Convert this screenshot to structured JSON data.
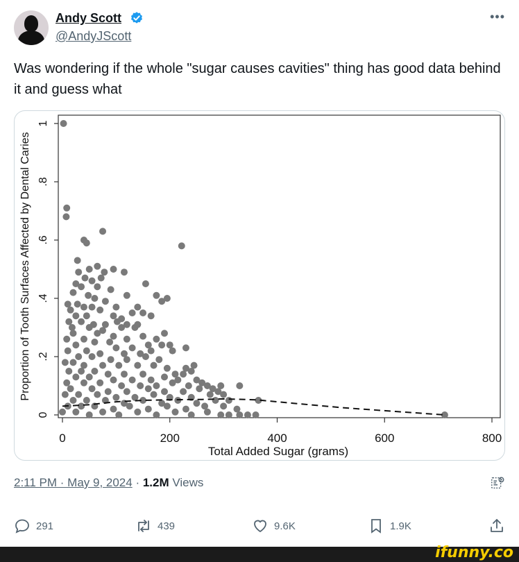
{
  "tweet": {
    "display_name": "Andy Scott",
    "handle": "@AndyJScott",
    "verified": true,
    "more_icon": "more-horizontal-icon",
    "text": "Was wondering if the whole \"sugar causes cavities\" thing has good data behind it and guess what",
    "time": "2:11 PM · May 9, 2024",
    "separator": " · ",
    "views_count": "1.2M",
    "views_label": " Views"
  },
  "actions": {
    "replies": "291",
    "retweets": "439",
    "likes": "9.6K",
    "bookmarks": "1.9K"
  },
  "colors": {
    "verified": "#1d9bf0",
    "points": "#7a7a7a",
    "muted": "#536471",
    "watermark": "#f5cc00"
  },
  "watermark": "ifunny.co",
  "chart_data": {
    "type": "scatter",
    "xlabel": "Total Added Sugar (grams)",
    "ylabel": "Proportion of Tooth Surfaces Affected by Dental Caries",
    "xlim": [
      0,
      800
    ],
    "ylim": [
      0,
      1
    ],
    "x_ticks": [
      "0",
      "200",
      "400",
      "600",
      "800"
    ],
    "y_ticks": [
      "0",
      ".2",
      ".4",
      ".6",
      ".8",
      "1"
    ],
    "grid": false,
    "series": [
      {
        "style": "points",
        "points": [
          [
            2,
            1.0
          ],
          [
            8,
            0.71
          ],
          [
            7,
            0.68
          ],
          [
            75,
            0.63
          ],
          [
            40,
            0.6
          ],
          [
            45,
            0.59
          ],
          [
            222,
            0.58
          ],
          [
            28,
            0.53
          ],
          [
            65,
            0.51
          ],
          [
            50,
            0.5
          ],
          [
            30,
            0.49
          ],
          [
            78,
            0.49
          ],
          [
            95,
            0.5
          ],
          [
            115,
            0.49
          ],
          [
            42,
            0.47
          ],
          [
            55,
            0.46
          ],
          [
            72,
            0.47
          ],
          [
            155,
            0.45
          ],
          [
            25,
            0.45
          ],
          [
            35,
            0.44
          ],
          [
            65,
            0.44
          ],
          [
            90,
            0.43
          ],
          [
            20,
            0.42
          ],
          [
            48,
            0.41
          ],
          [
            120,
            0.41
          ],
          [
            175,
            0.41
          ],
          [
            185,
            0.39
          ],
          [
            195,
            0.4
          ],
          [
            60,
            0.4
          ],
          [
            80,
            0.39
          ],
          [
            10,
            0.38
          ],
          [
            28,
            0.38
          ],
          [
            40,
            0.37
          ],
          [
            55,
            0.37
          ],
          [
            100,
            0.37
          ],
          [
            140,
            0.37
          ],
          [
            15,
            0.36
          ],
          [
            70,
            0.36
          ],
          [
            130,
            0.35
          ],
          [
            150,
            0.35
          ],
          [
            25,
            0.34
          ],
          [
            45,
            0.34
          ],
          [
            95,
            0.34
          ],
          [
            110,
            0.33
          ],
          [
            165,
            0.34
          ],
          [
            12,
            0.32
          ],
          [
            35,
            0.32
          ],
          [
            58,
            0.31
          ],
          [
            80,
            0.31
          ],
          [
            120,
            0.31
          ],
          [
            140,
            0.31
          ],
          [
            102,
            0.32
          ],
          [
            18,
            0.3
          ],
          [
            50,
            0.3
          ],
          [
            75,
            0.29
          ],
          [
            110,
            0.3
          ],
          [
            135,
            0.3
          ],
          [
            190,
            0.28
          ],
          [
            20,
            0.28
          ],
          [
            65,
            0.28
          ],
          [
            95,
            0.27
          ],
          [
            150,
            0.27
          ],
          [
            175,
            0.26
          ],
          [
            8,
            0.26
          ],
          [
            40,
            0.26
          ],
          [
            120,
            0.26
          ],
          [
            60,
            0.25
          ],
          [
            88,
            0.25
          ],
          [
            160,
            0.24
          ],
          [
            185,
            0.24
          ],
          [
            200,
            0.24
          ],
          [
            25,
            0.24
          ],
          [
            100,
            0.23
          ],
          [
            130,
            0.23
          ],
          [
            230,
            0.23
          ],
          [
            10,
            0.22
          ],
          [
            45,
            0.22
          ],
          [
            70,
            0.21
          ],
          [
            115,
            0.21
          ],
          [
            145,
            0.21
          ],
          [
            165,
            0.22
          ],
          [
            205,
            0.22
          ],
          [
            30,
            0.2
          ],
          [
            55,
            0.2
          ],
          [
            90,
            0.19
          ],
          [
            120,
            0.19
          ],
          [
            180,
            0.19
          ],
          [
            155,
            0.2
          ],
          [
            5,
            0.18
          ],
          [
            20,
            0.18
          ],
          [
            40,
            0.17
          ],
          [
            75,
            0.17
          ],
          [
            105,
            0.17
          ],
          [
            140,
            0.17
          ],
          [
            170,
            0.17
          ],
          [
            195,
            0.16
          ],
          [
            230,
            0.16
          ],
          [
            245,
            0.17
          ],
          [
            12,
            0.15
          ],
          [
            35,
            0.15
          ],
          [
            60,
            0.15
          ],
          [
            85,
            0.14
          ],
          [
            115,
            0.14
          ],
          [
            150,
            0.14
          ],
          [
            210,
            0.14
          ],
          [
            240,
            0.15
          ],
          [
            225,
            0.14
          ],
          [
            25,
            0.13
          ],
          [
            50,
            0.13
          ],
          [
            95,
            0.12
          ],
          [
            130,
            0.12
          ],
          [
            165,
            0.12
          ],
          [
            190,
            0.13
          ],
          [
            215,
            0.12
          ],
          [
            250,
            0.12
          ],
          [
            8,
            0.11
          ],
          [
            40,
            0.11
          ],
          [
            70,
            0.11
          ],
          [
            110,
            0.1
          ],
          [
            145,
            0.1
          ],
          [
            175,
            0.1
          ],
          [
            205,
            0.11
          ],
          [
            235,
            0.1
          ],
          [
            270,
            0.1
          ],
          [
            295,
            0.1
          ],
          [
            330,
            0.1
          ],
          [
            260,
            0.11
          ],
          [
            15,
            0.09
          ],
          [
            55,
            0.09
          ],
          [
            85,
            0.08
          ],
          [
            120,
            0.08
          ],
          [
            160,
            0.09
          ],
          [
            190,
            0.08
          ],
          [
            225,
            0.08
          ],
          [
            255,
            0.09
          ],
          [
            290,
            0.08
          ],
          [
            280,
            0.09
          ],
          [
            5,
            0.07
          ],
          [
            30,
            0.07
          ],
          [
            65,
            0.07
          ],
          [
            100,
            0.06
          ],
          [
            135,
            0.06
          ],
          [
            170,
            0.07
          ],
          [
            200,
            0.06
          ],
          [
            240,
            0.06
          ],
          [
            275,
            0.07
          ],
          [
            300,
            0.07
          ],
          [
            20,
            0.05
          ],
          [
            45,
            0.05
          ],
          [
            80,
            0.05
          ],
          [
            115,
            0.04
          ],
          [
            150,
            0.05
          ],
          [
            185,
            0.04
          ],
          [
            215,
            0.05
          ],
          [
            250,
            0.04
          ],
          [
            285,
            0.05
          ],
          [
            310,
            0.05
          ],
          [
            365,
            0.05
          ],
          [
            10,
            0.03
          ],
          [
            35,
            0.03
          ],
          [
            60,
            0.03
          ],
          [
            95,
            0.02
          ],
          [
            125,
            0.03
          ],
          [
            160,
            0.02
          ],
          [
            195,
            0.03
          ],
          [
            230,
            0.02
          ],
          [
            265,
            0.03
          ],
          [
            300,
            0.03
          ],
          [
            325,
            0.02
          ],
          [
            0,
            0.01
          ],
          [
            25,
            0.01
          ],
          [
            50,
            0.0
          ],
          [
            75,
            0.01
          ],
          [
            105,
            0.0
          ],
          [
            140,
            0.01
          ],
          [
            175,
            0.0
          ],
          [
            210,
            0.01
          ],
          [
            240,
            0.0
          ],
          [
            270,
            0.01
          ],
          [
            295,
            0.0
          ],
          [
            310,
            0.0
          ],
          [
            330,
            0.0
          ],
          [
            345,
            0.0
          ],
          [
            360,
            0.0
          ],
          [
            712,
            0.0
          ]
        ]
      },
      {
        "style": "dashed-line",
        "points": [
          [
            0,
            0.03
          ],
          [
            50,
            0.035
          ],
          [
            100,
            0.045
          ],
          [
            150,
            0.05
          ],
          [
            200,
            0.052
          ],
          [
            260,
            0.053
          ],
          [
            300,
            0.055
          ],
          [
            360,
            0.052
          ],
          [
            430,
            0.04
          ],
          [
            520,
            0.025
          ],
          [
            620,
            0.012
          ],
          [
            712,
            0.0
          ]
        ]
      }
    ]
  }
}
